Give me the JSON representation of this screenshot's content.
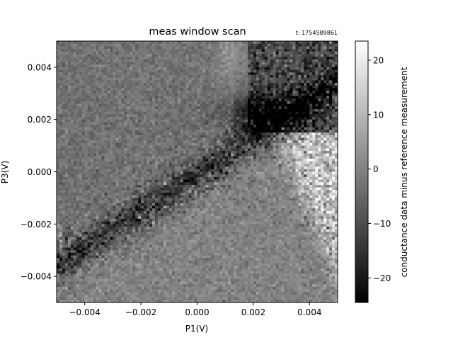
{
  "chart_data": {
    "type": "heatmap",
    "title": "meas window scan",
    "timestamp_label": "t: 1754589861",
    "xlabel": "P1(V)",
    "ylabel": "P3(V)",
    "xlim": [
      -0.005,
      0.005
    ],
    "ylim": [
      -0.005,
      0.005
    ],
    "colormap": "gray",
    "colorbar": {
      "label": "conductance data minus reference measurement",
      "range": [
        -24.5,
        23.5
      ],
      "ticks": [
        -20,
        -10,
        0,
        10,
        20
      ],
      "tick_labels": [
        "−20",
        "−10",
        "0",
        "10",
        "20"
      ]
    },
    "xticks": [
      -0.004,
      -0.002,
      0.0,
      0.002,
      0.004
    ],
    "xtick_labels": [
      "−0.004",
      "−0.002",
      "0.000",
      "0.002",
      "0.004"
    ],
    "yticks": [
      -0.004,
      -0.002,
      0.0,
      0.002,
      0.004
    ],
    "ytick_labels": [
      "−0.004",
      "−0.002",
      "0.000",
      "0.002",
      "0.004"
    ],
    "grid": false,
    "resolution": [
      100,
      100
    ],
    "features": [
      {
        "kind": "dark_band",
        "from": [
          -0.005,
          -0.0037
        ],
        "to": [
          0.005,
          0.0033
        ],
        "value": -12
      },
      {
        "kind": "bright_region",
        "x_range": [
          0.002,
          0.005
        ],
        "y_range": [
          -0.005,
          0.0
        ],
        "value": 12
      },
      {
        "kind": "dark_blob",
        "center": [
          0.0025,
          0.0022
        ],
        "value": -18
      },
      {
        "kind": "bright_fringe",
        "center": [
          0.0012,
          0.0045
        ],
        "value": 6
      },
      {
        "kind": "background_upper_left",
        "value": -3
      },
      {
        "kind": "background_lower_right",
        "value": 0
      }
    ]
  }
}
